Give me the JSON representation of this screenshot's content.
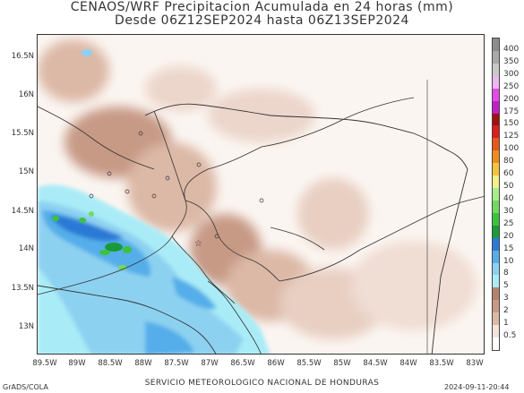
{
  "title": {
    "line1": "CENAOS/WRF Precipitacion Acumulada en 24 horas (mm)",
    "line2": "Desde 06Z12SEP2024 hasta 06Z13SEP2024"
  },
  "axes": {
    "lat_labels": [
      "16.5N",
      "16N",
      "15.5N",
      "15N",
      "14.5N",
      "14N",
      "13.5N",
      "13N"
    ],
    "lon_labels": [
      "89.5W",
      "89W",
      "88.5W",
      "88W",
      "87.5W",
      "87W",
      "86.5W",
      "86W",
      "85.5W",
      "85W",
      "84.5W",
      "84W",
      "83.5W",
      "83W"
    ]
  },
  "colorbar": {
    "levels": [
      "0.5",
      "1",
      "2",
      "3",
      "5",
      "8",
      "10",
      "15",
      "20",
      "25",
      "30",
      "40",
      "50",
      "60",
      "80",
      "100",
      "125",
      "150",
      "175",
      "200",
      "250",
      "300",
      "350",
      "400"
    ],
    "colors": [
      "#fefefe",
      "#f3e3da",
      "#dcb8a6",
      "#c79a86",
      "#b3826e",
      "#a9ecf7",
      "#8dd1f1",
      "#55aee9",
      "#2c79d6",
      "#1a9b3a",
      "#3cc33c",
      "#74d962",
      "#a6ee8d",
      "#f3f08a",
      "#f5c23d",
      "#f08a1c",
      "#e7561a",
      "#d91f1f",
      "#a01010",
      "#c21ec7",
      "#e24be6",
      "#f0b4f0",
      "#c8c8c8",
      "#a8a8a8",
      "#8c8c8c"
    ]
  },
  "footer": {
    "left": "GrADS/COLA",
    "center": "SERVICIO METEOROLOGICO NACIONAL DE HONDURAS",
    "right": "2024-09-11-20:44"
  }
}
